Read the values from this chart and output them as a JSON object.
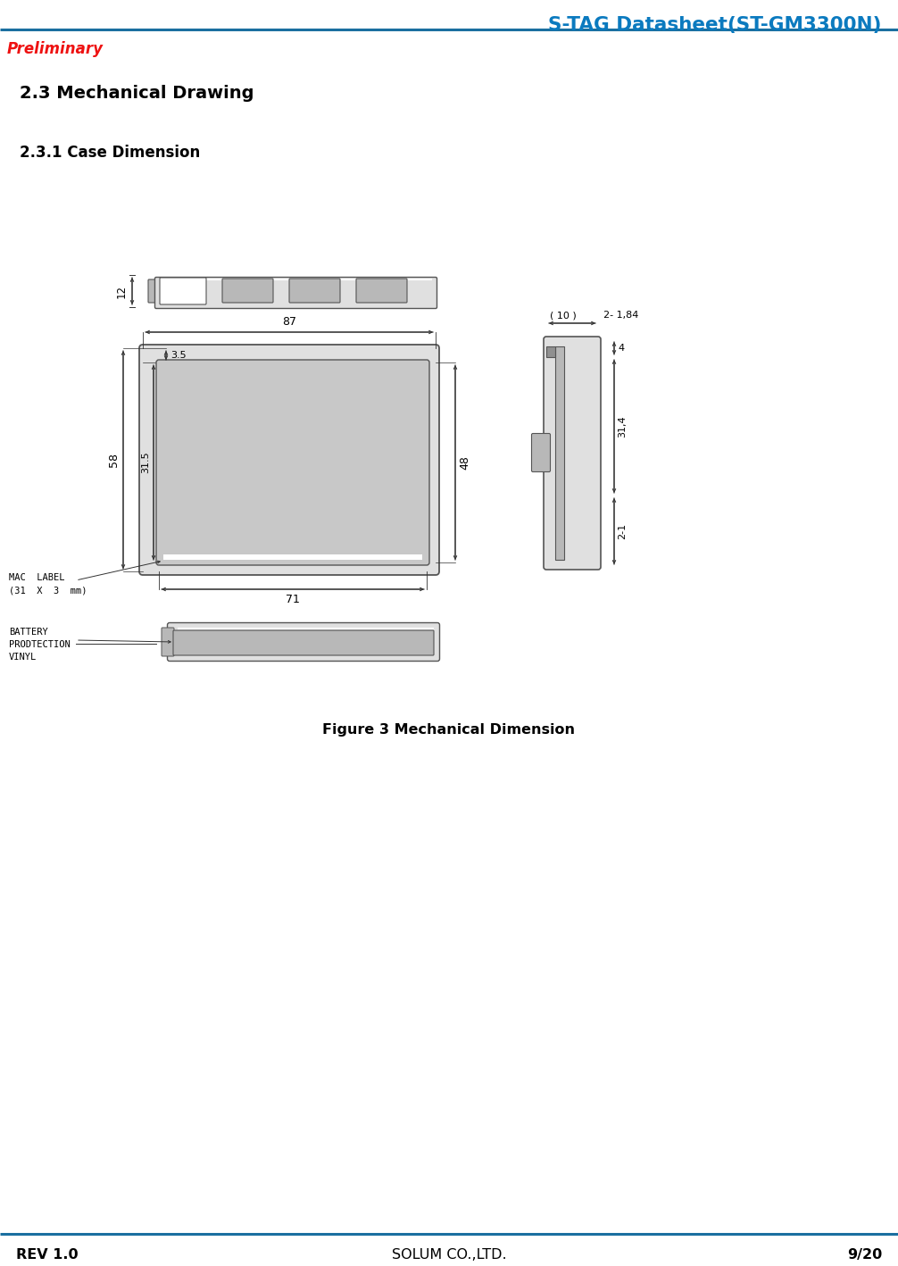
{
  "page_title": "S-TAG Datasheet(ST-GM3300N)",
  "preliminary_text": "Preliminary",
  "section_title": "2.3 Mechanical Drawing",
  "subsection_title": "2.3.1 Case Dimension",
  "figure_caption": "Figure 3 Mechanical Dimension",
  "footer_left": "REV 1.0",
  "footer_center": "SOLUM CO.,LTD.",
  "footer_right": "9/20",
  "header_color": "#0b7abf",
  "preliminary_color": "#ee1111",
  "footer_line_color": "#1a6fa0",
  "drawing_color": "#555555",
  "dim_color": "#333333",
  "bg_color": "#ffffff",
  "gray_fill": "#c8c8c8",
  "mid_gray": "#b8b8b8",
  "light_gray": "#e0e0e0",
  "dark_gray": "#909090",
  "dim_87": "87",
  "dim_71": "71",
  "dim_58": "58",
  "dim_31_5": "31.5",
  "dim_3_5": "3.5",
  "dim_12": "12",
  "dim_48": "48",
  "dim_10": "( 10 )",
  "dim_2_1_84": "2- 1,84",
  "dim_4": "4",
  "dim_31_4": "31,4",
  "dim_2_1": "2-1",
  "mac_label_line1": "MAC  LABEL",
  "mac_label_line2": "(31  X  3  mm)",
  "battery_label_line1": "BATTERY",
  "battery_label_line2": "PRODTECTION",
  "battery_label_line3": "VINYL"
}
